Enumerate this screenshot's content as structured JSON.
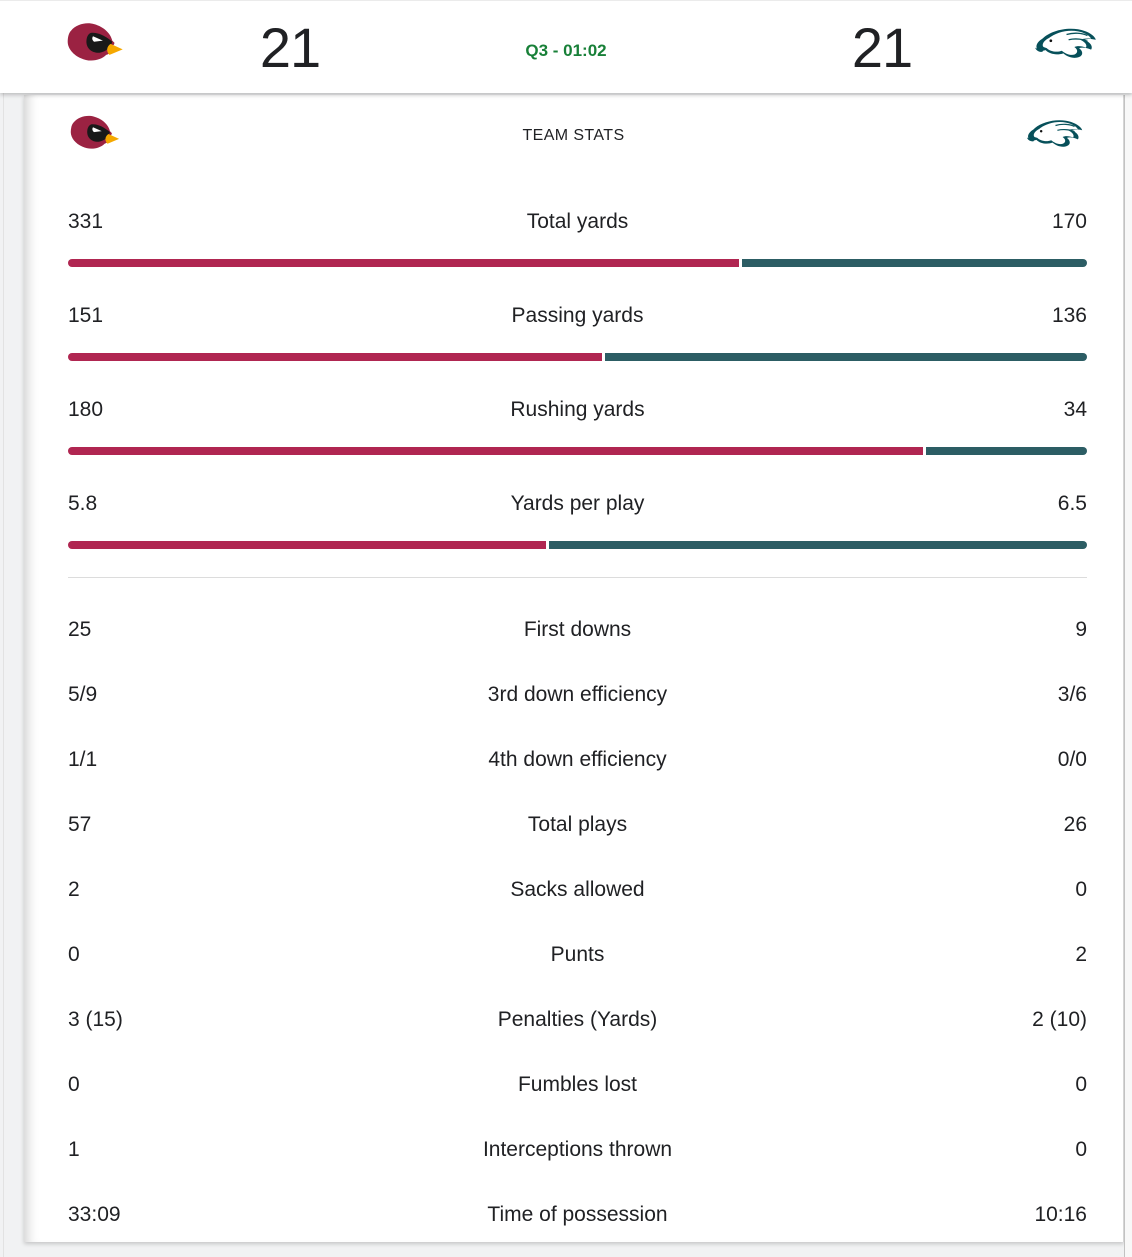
{
  "scoreboard": {
    "away_team": "Cardinals",
    "home_team": "Eagles",
    "away_score": "21",
    "home_score": "21",
    "clock": "Q3 - 01:02"
  },
  "colors": {
    "away_bar": "#b02651",
    "home_bar": "#2c5d64",
    "clock_green": "#188038"
  },
  "team_stats": {
    "title": "TEAM STATS",
    "bar_rows": [
      {
        "label": "Total yards",
        "away": "331",
        "home": "170"
      },
      {
        "label": "Passing yards",
        "away": "151",
        "home": "136"
      },
      {
        "label": "Rushing yards",
        "away": "180",
        "home": "34"
      },
      {
        "label": "Yards per play",
        "away": "5.8",
        "home": "6.5"
      }
    ],
    "text_rows": [
      {
        "label": "First downs",
        "away": "25",
        "home": "9"
      },
      {
        "label": "3rd down efficiency",
        "away": "5/9",
        "home": "3/6"
      },
      {
        "label": "4th down efficiency",
        "away": "1/1",
        "home": "0/0"
      },
      {
        "label": "Total plays",
        "away": "57",
        "home": "26"
      },
      {
        "label": "Sacks allowed",
        "away": "2",
        "home": "0"
      },
      {
        "label": "Punts",
        "away": "0",
        "home": "2"
      },
      {
        "label": "Penalties (Yards)",
        "away": "3 (15)",
        "home": "2 (10)"
      },
      {
        "label": "Fumbles lost",
        "away": "0",
        "home": "0"
      },
      {
        "label": "Interceptions thrown",
        "away": "1",
        "home": "0"
      },
      {
        "label": "Time of possession",
        "away": "33:09",
        "home": "10:16"
      }
    ]
  }
}
